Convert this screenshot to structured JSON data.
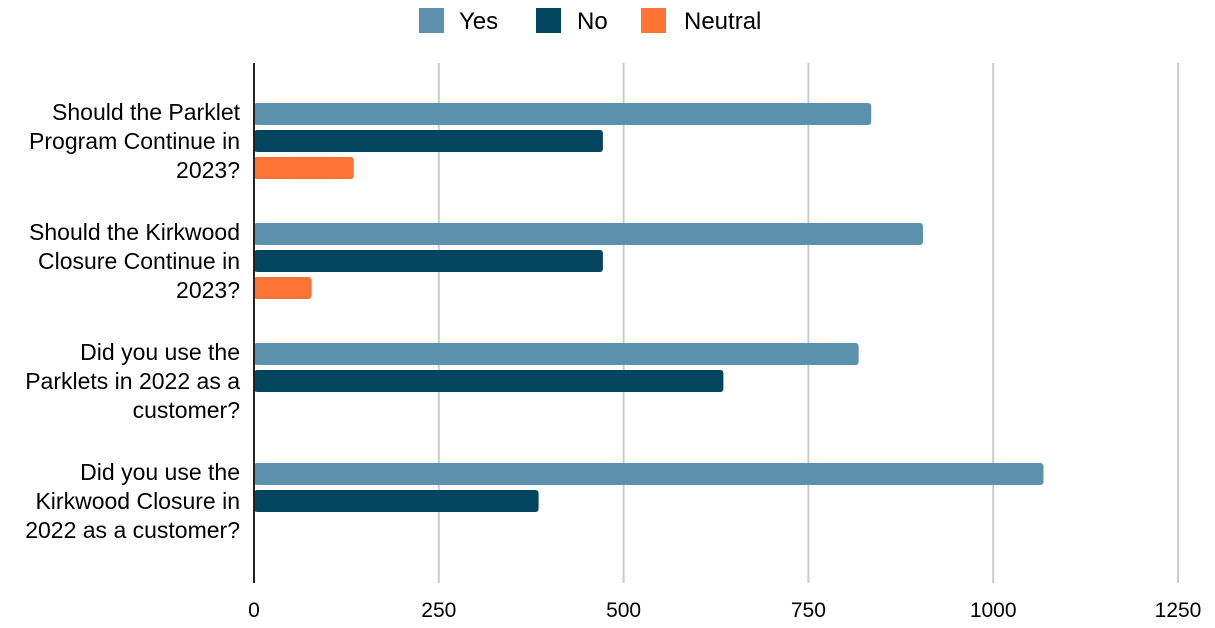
{
  "chart_data": {
    "type": "bar",
    "orientation": "horizontal",
    "categories": [
      "Should the Parklet Program Continue in 2023?",
      "Should the Kirkwood Closure Continue in 2023?",
      "Did you use the Parklets in 2022 as a customer?",
      "Did you use the Kirkwood Closure in 2022 as a customer?"
    ],
    "category_lines": [
      [
        "Should the Parklet",
        "Program Continue in",
        "2023?"
      ],
      [
        "Should the Kirkwood",
        "Closure Continue in",
        "2023?"
      ],
      [
        "Did you use the",
        "Parklets in 2022 as a",
        "customer?"
      ],
      [
        "Did you use the",
        "Kirkwood Closure in",
        "2022 as a customer?"
      ]
    ],
    "series": [
      {
        "name": "Yes",
        "color": "#5b91ad",
        "values": [
          835,
          905,
          818,
          1068
        ]
      },
      {
        "name": "No",
        "color": "#03445f",
        "values": [
          472,
          472,
          635,
          385
        ]
      },
      {
        "name": "Neutral",
        "color": "#ff7433",
        "values": [
          135,
          78,
          null,
          null
        ]
      }
    ],
    "xlim": [
      0,
      1250
    ],
    "xticks": [
      0,
      250,
      500,
      750,
      1000,
      1250
    ],
    "xtick_labels": [
      "0",
      "250",
      "500",
      "750",
      "1000",
      "1250"
    ],
    "grid": true,
    "legend_position": "top-center",
    "title": "",
    "xlabel": "",
    "ylabel": ""
  }
}
